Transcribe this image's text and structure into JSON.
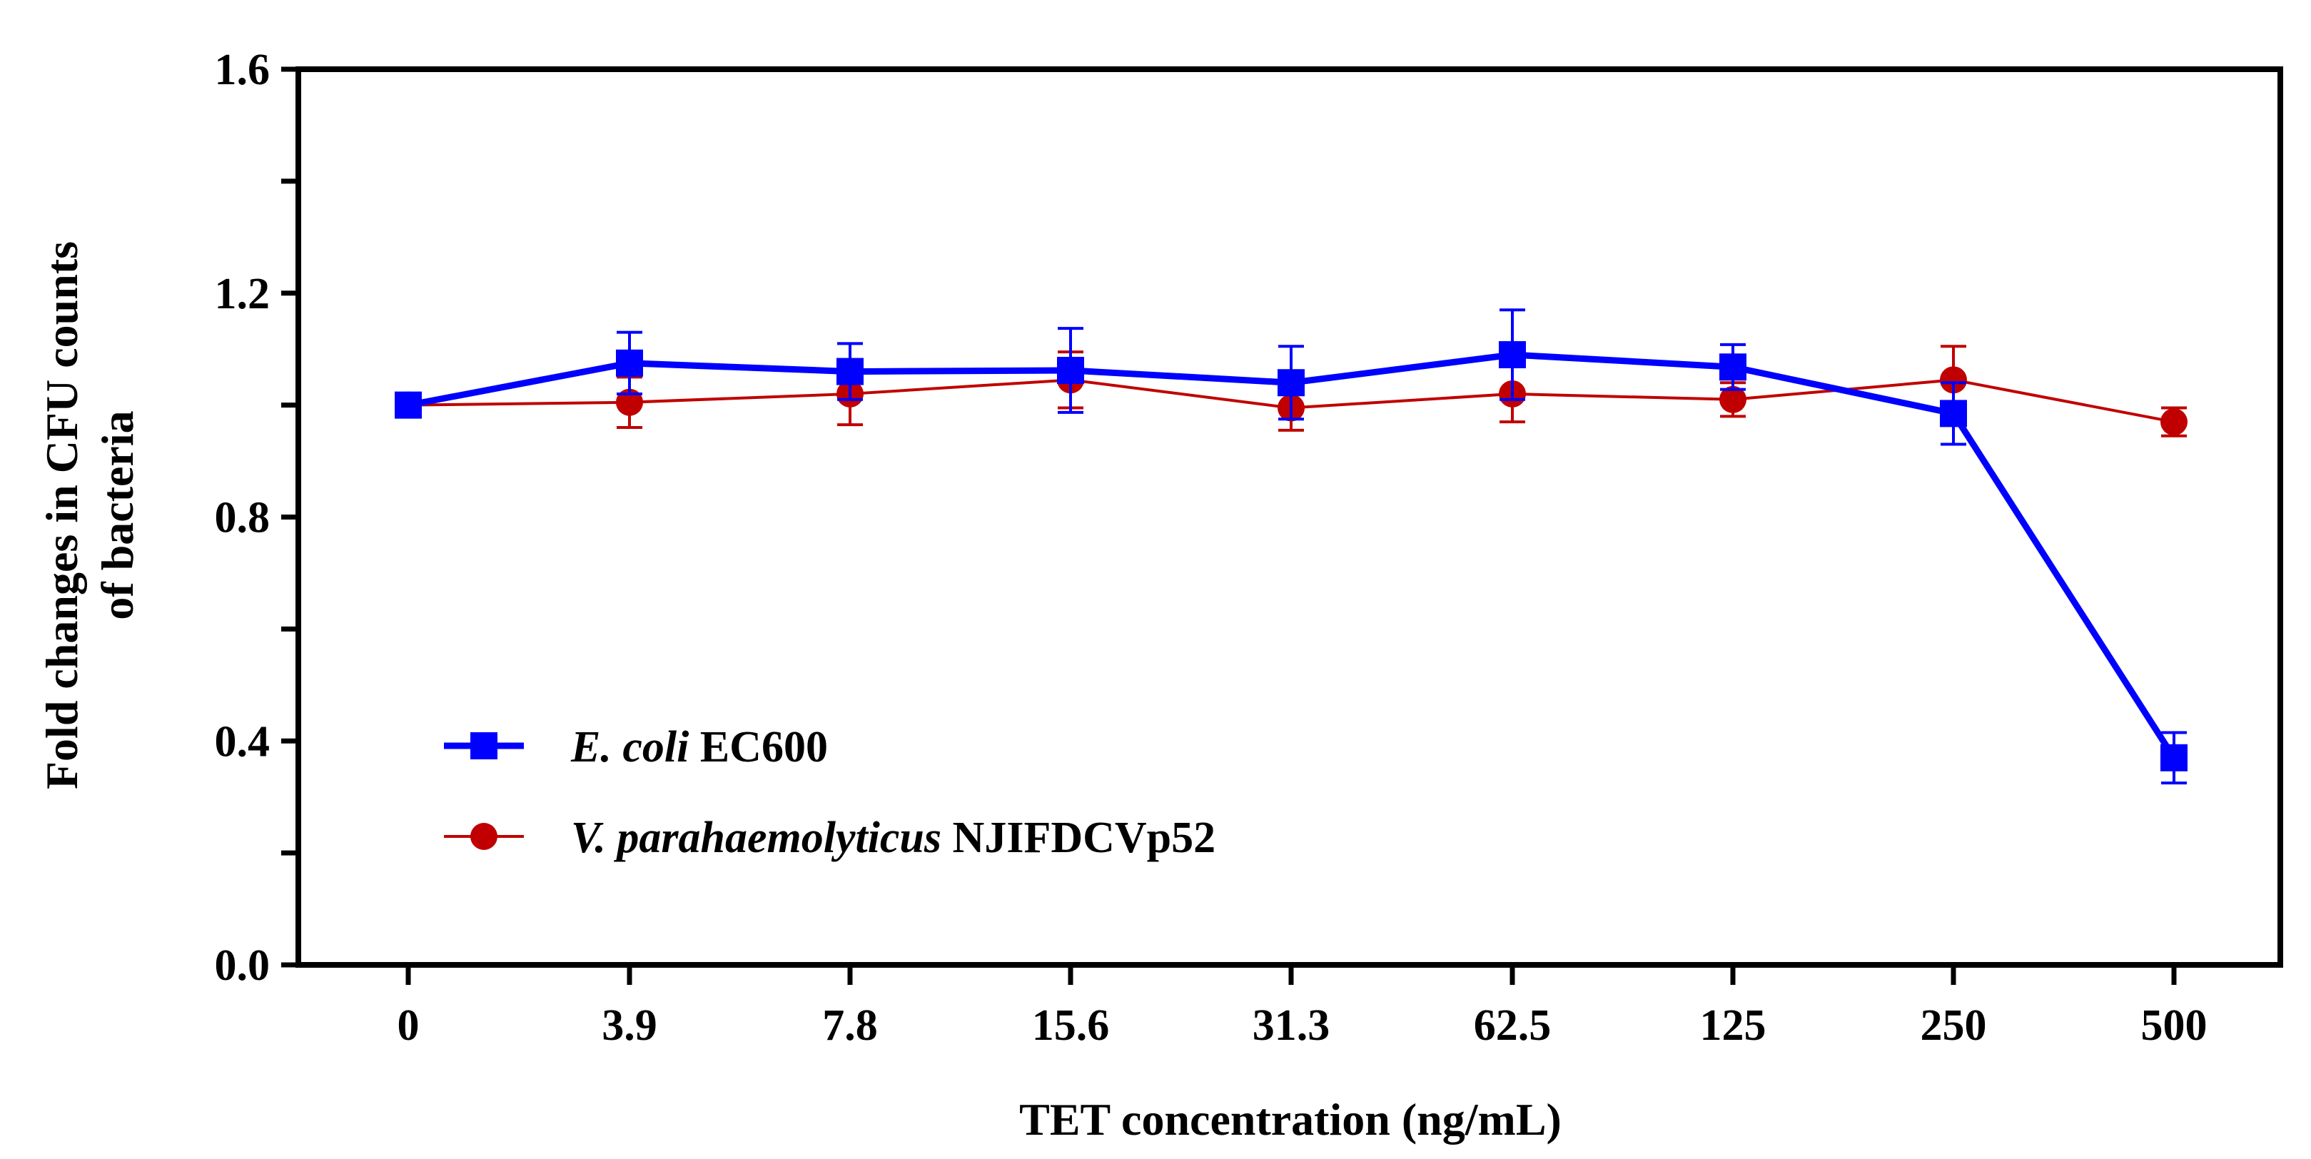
{
  "chart_data": {
    "type": "line",
    "title": "",
    "xlabel": "TET concentration (ng/mL)",
    "ylabel_line1": "Fold changes in CFU counts",
    "ylabel_line2": "of bacteria",
    "categories": [
      "0",
      "3.9",
      "7.8",
      "15.6",
      "31.3",
      "62.5",
      "125",
      "250",
      "500"
    ],
    "ylim": [
      0.0,
      1.6
    ],
    "yticks": [
      "0.0",
      "0.4",
      "0.8",
      "1.2",
      "1.6"
    ],
    "ytick_values": [
      0.0,
      0.4,
      0.8,
      1.2,
      1.6
    ],
    "y_minor_step": 0.2,
    "grid": false,
    "legend_position": "bottom-left",
    "series": [
      {
        "name_italic": "E. coli",
        "name_plain": " EC600",
        "marker": "square",
        "color": "#0000ff",
        "values": [
          1.0,
          1.075,
          1.06,
          1.062,
          1.04,
          1.09,
          1.068,
          0.985,
          0.37
        ],
        "errors": [
          0.015,
          0.055,
          0.05,
          0.075,
          0.065,
          0.08,
          0.04,
          0.055,
          0.045
        ]
      },
      {
        "name_italic": "V. parahaemolyticus",
        "name_plain": " NJIFDCVp52",
        "marker": "circle",
        "color": "#c00000",
        "values": [
          1.0,
          1.005,
          1.02,
          1.045,
          0.995,
          1.02,
          1.01,
          1.045,
          0.97
        ],
        "errors": [
          0.015,
          0.045,
          0.055,
          0.05,
          0.04,
          0.05,
          0.03,
          0.06,
          0.025
        ]
      }
    ]
  }
}
